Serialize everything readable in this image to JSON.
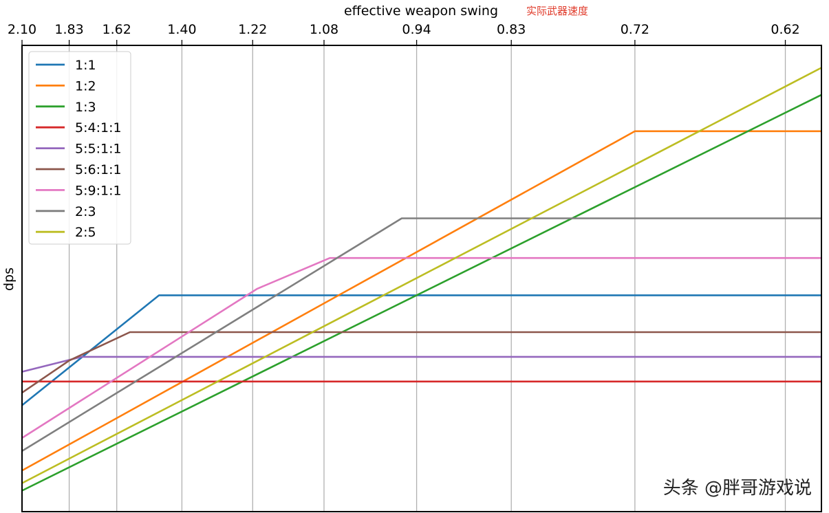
{
  "chart_data": {
    "type": "line",
    "xlabel": "effective weapon swing",
    "ylabel": "dps",
    "annotation": "实际武器速度",
    "watermark": "头条 @胖哥游戏说",
    "x_tick_labels": [
      "2.10",
      "1.83",
      "1.62",
      "1.40",
      "1.22",
      "1.08",
      "0.94",
      "0.83",
      "0.72",
      "0.62"
    ],
    "x_scale": "reciprocal",
    "xlim": [
      2.1,
      0.6
    ],
    "ylim": [
      0,
      1
    ],
    "y_ticks_shown": false,
    "grid": "vertical",
    "legend": "top-left",
    "series": [
      {
        "name": "1:1",
        "color": "#1f77b4",
        "x": [
          2.1,
          1.47,
          0.6
        ],
        "y": [
          0.228,
          0.464,
          0.464
        ]
      },
      {
        "name": "1:2",
        "color": "#ff7f0e",
        "x": [
          2.1,
          0.72,
          0.6
        ],
        "y": [
          0.088,
          0.816,
          0.816
        ]
      },
      {
        "name": "1:3",
        "color": "#2ca02c",
        "x": [
          2.1,
          0.6
        ],
        "y": [
          0.045,
          0.894
        ]
      },
      {
        "name": "5:4:1:1",
        "color": "#d62728",
        "x": [
          2.1,
          0.6
        ],
        "y": [
          0.279,
          0.279
        ]
      },
      {
        "name": "5:5:1:1",
        "color": "#9467bd",
        "x": [
          2.1,
          1.77,
          0.6
        ],
        "y": [
          0.3,
          0.332,
          0.332
        ]
      },
      {
        "name": "5:6:1:1",
        "color": "#8c564b",
        "x": [
          2.1,
          1.83,
          1.57,
          0.6
        ],
        "y": [
          0.255,
          0.324,
          0.385,
          0.385
        ]
      },
      {
        "name": "5:9:1:1",
        "color": "#e377c2",
        "x": [
          2.1,
          1.21,
          1.07,
          0.6
        ],
        "y": [
          0.158,
          0.478,
          0.544,
          0.544
        ]
      },
      {
        "name": "2:3",
        "color": "#7f7f7f",
        "x": [
          2.1,
          0.96,
          0.6
        ],
        "y": [
          0.13,
          0.629,
          0.629
        ]
      },
      {
        "name": "2:5",
        "color": "#bcbd22",
        "x": [
          2.1,
          0.6
        ],
        "y": [
          0.061,
          0.952
        ]
      }
    ]
  }
}
